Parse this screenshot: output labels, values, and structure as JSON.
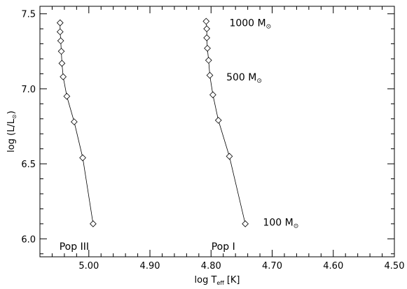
{
  "chart_data": {
    "type": "line",
    "xlabel": "log T",
    "xlabel_sub": "eff",
    "xlabel_unit": "[K]",
    "ylabel_prefix": "log (L/L",
    "ylabel_suffix": ")",
    "xlim": [
      5.08,
      4.5
    ],
    "ylim": [
      5.88,
      7.55
    ],
    "x_ticks": [
      5.0,
      4.9,
      4.8,
      4.7,
      4.6,
      4.5
    ],
    "x_tick_labels": [
      "5.00",
      "4.90",
      "4.80",
      "4.70",
      "4.60",
      "4.50"
    ],
    "y_ticks": [
      6.0,
      6.5,
      7.0,
      7.5
    ],
    "y_tick_labels": [
      "6.0",
      "6.5",
      "7.0",
      "7.5"
    ],
    "x_minor_step": 0.02,
    "y_minor_step": 0.1,
    "grid": false,
    "marker": "diamond",
    "series": [
      {
        "name": "Pop III",
        "points": [
          {
            "x": 4.993,
            "y": 6.1
          },
          {
            "x": 5.01,
            "y": 6.54
          },
          {
            "x": 5.024,
            "y": 6.78
          },
          {
            "x": 5.036,
            "y": 6.95
          },
          {
            "x": 5.042,
            "y": 7.08
          },
          {
            "x": 5.044,
            "y": 7.17
          },
          {
            "x": 5.045,
            "y": 7.25
          },
          {
            "x": 5.046,
            "y": 7.32
          },
          {
            "x": 5.047,
            "y": 7.38
          },
          {
            "x": 5.047,
            "y": 7.44
          }
        ]
      },
      {
        "name": "Pop I",
        "points": [
          {
            "x": 4.744,
            "y": 6.1
          },
          {
            "x": 4.77,
            "y": 6.55
          },
          {
            "x": 4.788,
            "y": 6.79
          },
          {
            "x": 4.797,
            "y": 6.96
          },
          {
            "x": 4.802,
            "y": 7.09
          },
          {
            "x": 4.804,
            "y": 7.19
          },
          {
            "x": 4.806,
            "y": 7.27
          },
          {
            "x": 4.807,
            "y": 7.34
          },
          {
            "x": 4.807,
            "y": 7.4
          },
          {
            "x": 4.808,
            "y": 7.45
          }
        ]
      }
    ],
    "series_labels": [
      {
        "text": "Pop III",
        "x": 5.024,
        "y": 5.95
      },
      {
        "text": "Pop I",
        "x": 4.78,
        "y": 5.95
      }
    ],
    "annotations": [
      {
        "number": "1000 M",
        "symbol": "⊙",
        "x": 4.77,
        "y": 7.44
      },
      {
        "number": "500 M",
        "symbol": "⊙",
        "x": 4.775,
        "y": 7.08
      },
      {
        "number": "100 M",
        "symbol": "⊙",
        "x": 4.715,
        "y": 6.11
      }
    ],
    "sun_symbol": "⊙"
  }
}
